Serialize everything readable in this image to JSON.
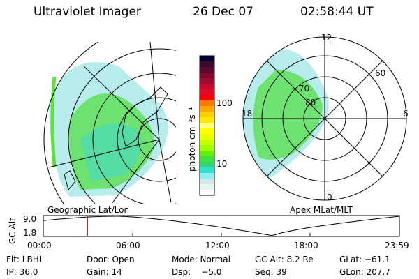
{
  "header": {
    "instrument": "Ultraviolet Imager",
    "date": "26 Dec 07",
    "time": "02:58:44 UT"
  },
  "colorbar": {
    "unit_label": "photon cm⁻²s⁻¹",
    "ticks": [
      "100",
      "10"
    ],
    "colors": [
      "#000030",
      "#3a0a2a",
      "#5a0a30",
      "#800a30",
      "#a00a30",
      "#c80a30",
      "#e00a2a",
      "#ff0000",
      "#ff7a00",
      "#ffaa00",
      "#ffcc00",
      "#ffe800",
      "#ffff80",
      "#ffff00",
      "#e8ff00",
      "#c8ff00",
      "#a0ff00",
      "#60f000",
      "#40e040",
      "#30d870",
      "#30e0d0",
      "#90f0f0",
      "#d0e8e8",
      "#e8f4f0",
      "#ffffff"
    ]
  },
  "left_panel": {
    "label": "Geographic Lat/Lon"
  },
  "right_panel": {
    "label": "Apex MLat/MLT",
    "mlt_labels": {
      "top": "12",
      "left": "18",
      "right": "6",
      "bottom": "0"
    },
    "lat_labels": [
      "80",
      "70",
      "60"
    ]
  },
  "altitude_plot": {
    "ylabel": "GC Alt",
    "yticks": [
      "9.0",
      "1.8"
    ],
    "xticks": [
      "00:00",
      "06:00",
      "12:00",
      "18:00",
      "23:59"
    ],
    "current_time_hours": 2.98,
    "line_color": "#000000",
    "marker_color": "#cc0000"
  },
  "status": {
    "row1": [
      "Flt: LBHL",
      "Door: Open",
      "Mode: Normal",
      "GC Alt: 8.2 Re",
      "GLat: −61.1"
    ],
    "row2": [
      "IP: 36.0",
      "Gain: 14",
      "Dsp:    −5.0",
      "Seq: 39",
      "GLon: 207.7"
    ]
  }
}
